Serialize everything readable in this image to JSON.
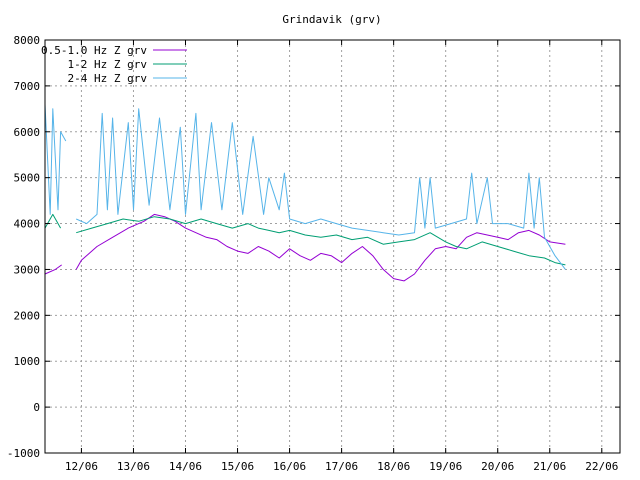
{
  "chart_data": {
    "type": "line",
    "title": "Grindavik (grv)",
    "xlabel": "",
    "ylabel": "",
    "ylim": [
      -1000,
      8000
    ],
    "xlim": [
      11.3,
      22.35
    ],
    "yticks": [
      -1000,
      0,
      1000,
      2000,
      3000,
      4000,
      5000,
      6000,
      7000,
      8000
    ],
    "xticks": [
      {
        "x": 12,
        "label": "12/06"
      },
      {
        "x": 13,
        "label": "13/06"
      },
      {
        "x": 14,
        "label": "14/06"
      },
      {
        "x": 15,
        "label": "15/06"
      },
      {
        "x": 16,
        "label": "16/06"
      },
      {
        "x": 17,
        "label": "17/06"
      },
      {
        "x": 18,
        "label": "18/06"
      },
      {
        "x": 19,
        "label": "19/06"
      },
      {
        "x": 20,
        "label": "20/06"
      },
      {
        "x": 21,
        "label": "21/06"
      },
      {
        "x": 22,
        "label": "22/06"
      }
    ],
    "grid": true,
    "legend_position": "top-left",
    "series": [
      {
        "name": "0.5-1.0 Hz Z grv",
        "color": "#9400d3",
        "points": [
          [
            11.3,
            2900
          ],
          [
            11.5,
            3000
          ],
          [
            11.62,
            3100
          ],
          [
            11.65,
            null
          ],
          [
            11.9,
            3000
          ],
          [
            12.0,
            3200
          ],
          [
            12.3,
            3500
          ],
          [
            12.6,
            3700
          ],
          [
            12.9,
            3900
          ],
          [
            13.2,
            4050
          ],
          [
            13.4,
            4200
          ],
          [
            13.6,
            4150
          ],
          [
            13.8,
            4050
          ],
          [
            14.0,
            3900
          ],
          [
            14.2,
            3800
          ],
          [
            14.4,
            3700
          ],
          [
            14.6,
            3650
          ],
          [
            14.8,
            3500
          ],
          [
            15.0,
            3400
          ],
          [
            15.2,
            3350
          ],
          [
            15.4,
            3500
          ],
          [
            15.6,
            3400
          ],
          [
            15.8,
            3250
          ],
          [
            16.0,
            3450
          ],
          [
            16.2,
            3300
          ],
          [
            16.4,
            3200
          ],
          [
            16.6,
            3350
          ],
          [
            16.8,
            3300
          ],
          [
            17.0,
            3150
          ],
          [
            17.2,
            3350
          ],
          [
            17.4,
            3500
          ],
          [
            17.6,
            3300
          ],
          [
            17.8,
            3000
          ],
          [
            18.0,
            2800
          ],
          [
            18.2,
            2750
          ],
          [
            18.4,
            2900
          ],
          [
            18.6,
            3200
          ],
          [
            18.8,
            3450
          ],
          [
            19.0,
            3500
          ],
          [
            19.2,
            3450
          ],
          [
            19.4,
            3700
          ],
          [
            19.6,
            3800
          ],
          [
            19.8,
            3750
          ],
          [
            20.0,
            3700
          ],
          [
            20.2,
            3650
          ],
          [
            20.4,
            3800
          ],
          [
            20.6,
            3850
          ],
          [
            20.8,
            3750
          ],
          [
            21.0,
            3600
          ],
          [
            21.3,
            3550
          ]
        ]
      },
      {
        "name": "1-2 Hz Z grv",
        "color": "#009e73",
        "points": [
          [
            11.3,
            3900
          ],
          [
            11.45,
            4200
          ],
          [
            11.6,
            3900
          ],
          [
            11.65,
            null
          ],
          [
            11.9,
            3800
          ],
          [
            12.2,
            3900
          ],
          [
            12.5,
            4000
          ],
          [
            12.8,
            4100
          ],
          [
            13.1,
            4050
          ],
          [
            13.4,
            4150
          ],
          [
            13.7,
            4100
          ],
          [
            14.0,
            4000
          ],
          [
            14.3,
            4100
          ],
          [
            14.6,
            4000
          ],
          [
            14.9,
            3900
          ],
          [
            15.2,
            4000
          ],
          [
            15.4,
            3900
          ],
          [
            15.6,
            3850
          ],
          [
            15.8,
            3800
          ],
          [
            16.0,
            3850
          ],
          [
            16.3,
            3750
          ],
          [
            16.6,
            3700
          ],
          [
            16.9,
            3750
          ],
          [
            17.2,
            3650
          ],
          [
            17.5,
            3700
          ],
          [
            17.8,
            3550
          ],
          [
            18.1,
            3600
          ],
          [
            18.4,
            3650
          ],
          [
            18.7,
            3800
          ],
          [
            19.0,
            3600
          ],
          [
            19.2,
            3500
          ],
          [
            19.4,
            3450
          ],
          [
            19.7,
            3600
          ],
          [
            20.0,
            3500
          ],
          [
            20.3,
            3400
          ],
          [
            20.6,
            3300
          ],
          [
            20.9,
            3250
          ],
          [
            21.1,
            3150
          ],
          [
            21.3,
            3100
          ]
        ]
      },
      {
        "name": "2-4 Hz Z grv",
        "color": "#56b4e9",
        "points": [
          [
            11.3,
            6600
          ],
          [
            11.4,
            4200
          ],
          [
            11.45,
            6500
          ],
          [
            11.55,
            4300
          ],
          [
            11.6,
            6000
          ],
          [
            11.7,
            5800
          ],
          [
            11.75,
            null
          ],
          [
            11.9,
            4100
          ],
          [
            12.1,
            4000
          ],
          [
            12.3,
            4200
          ],
          [
            12.4,
            6400
          ],
          [
            12.5,
            4300
          ],
          [
            12.6,
            6300
          ],
          [
            12.7,
            4200
          ],
          [
            12.9,
            6200
          ],
          [
            13.0,
            4300
          ],
          [
            13.1,
            6500
          ],
          [
            13.3,
            4400
          ],
          [
            13.5,
            6300
          ],
          [
            13.7,
            4300
          ],
          [
            13.9,
            6100
          ],
          [
            14.0,
            4200
          ],
          [
            14.2,
            6400
          ],
          [
            14.3,
            4300
          ],
          [
            14.5,
            6200
          ],
          [
            14.7,
            4300
          ],
          [
            14.9,
            6200
          ],
          [
            15.1,
            4200
          ],
          [
            15.3,
            5900
          ],
          [
            15.5,
            4200
          ],
          [
            15.6,
            5000
          ],
          [
            15.8,
            4300
          ],
          [
            15.9,
            5100
          ],
          [
            16.0,
            4100
          ],
          [
            16.3,
            4000
          ],
          [
            16.6,
            4100
          ],
          [
            16.9,
            4000
          ],
          [
            17.2,
            3900
          ],
          [
            17.5,
            3850
          ],
          [
            17.8,
            3800
          ],
          [
            18.1,
            3750
          ],
          [
            18.4,
            3800
          ],
          [
            18.5,
            5000
          ],
          [
            18.6,
            3900
          ],
          [
            18.7,
            5000
          ],
          [
            18.8,
            3900
          ],
          [
            19.1,
            4000
          ],
          [
            19.4,
            4100
          ],
          [
            19.5,
            5100
          ],
          [
            19.6,
            4000
          ],
          [
            19.8,
            5000
          ],
          [
            19.9,
            4000
          ],
          [
            20.2,
            4000
          ],
          [
            20.5,
            3900
          ],
          [
            20.6,
            5100
          ],
          [
            20.7,
            3900
          ],
          [
            20.8,
            5000
          ],
          [
            20.9,
            3700
          ],
          [
            21.1,
            3300
          ],
          [
            21.3,
            3000
          ]
        ]
      }
    ]
  }
}
